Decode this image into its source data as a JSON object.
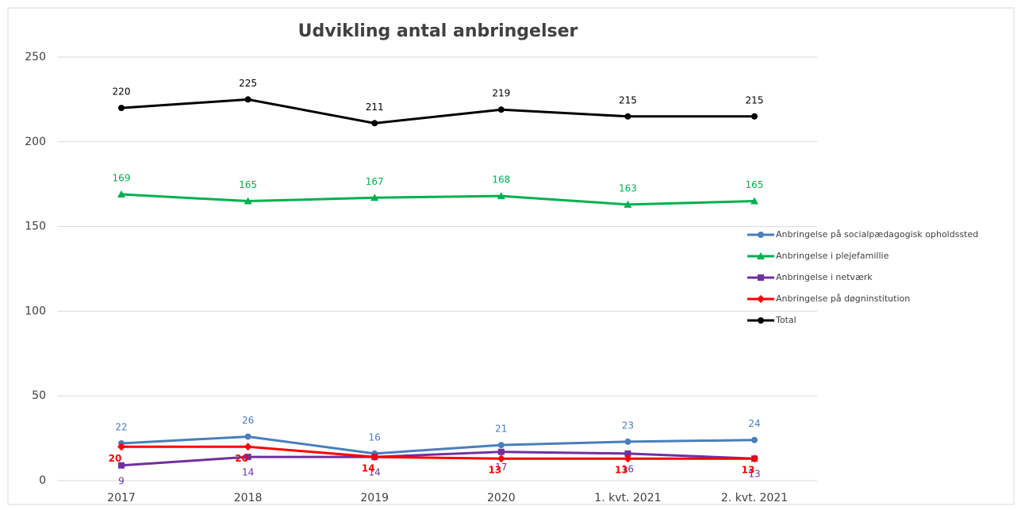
{
  "chart_data": {
    "type": "line",
    "title": "Udvikling antal anbringelser",
    "categories": [
      "2017",
      "2018",
      "2019",
      "2020",
      "1. kvt. 2021",
      "2. kvt. 2021"
    ],
    "series": [
      {
        "name": "Anbringelse på socialpædagogisk opholdssted",
        "color": "#4a7ebb",
        "marker": "circle",
        "values": [
          22,
          26,
          16,
          21,
          23,
          24
        ]
      },
      {
        "name": "Anbringelse i plejefamillie",
        "color": "#00b050",
        "marker": "triangle",
        "values": [
          169,
          165,
          167,
          168,
          163,
          165
        ]
      },
      {
        "name": "Anbringelse i netværk",
        "color": "#7030a0",
        "marker": "square",
        "values": [
          9,
          14,
          14,
          17,
          16,
          13
        ]
      },
      {
        "name": "Anbringelse på døgninstitution",
        "color": "#ff0000",
        "marker": "diamond",
        "values": [
          20,
          20,
          14,
          13,
          13,
          13
        ]
      },
      {
        "name": "Total",
        "color": "#000000",
        "marker": "circle",
        "values": [
          220,
          225,
          211,
          219,
          215,
          215
        ]
      }
    ],
    "ylim": [
      0,
      250
    ],
    "yticks": [
      0,
      50,
      100,
      150,
      200,
      250
    ],
    "grid": true,
    "legend": "right"
  }
}
